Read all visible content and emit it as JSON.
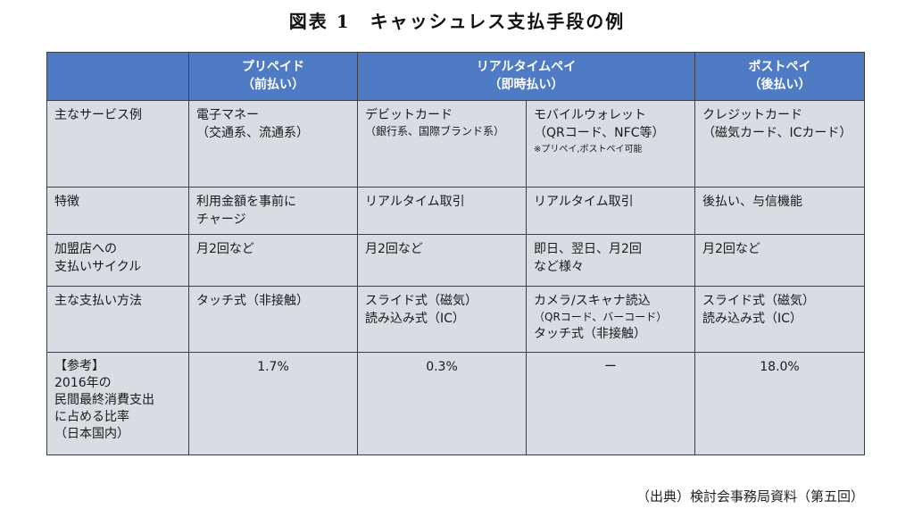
{
  "title": "図表 1　キャッシュレス支払手段の例",
  "header": {
    "blank": "",
    "prepaid": [
      "プリペイド",
      "（前払い）"
    ],
    "realtime": [
      "リアルタイムペイ",
      "（即時払い）"
    ],
    "postpay": [
      "ポストペイ",
      "（後払い）"
    ]
  },
  "rows": [
    {
      "label": [
        "主なサービス例"
      ],
      "prepaid": [
        "電子マネー",
        "（交通系、流通系）"
      ],
      "debit": [
        "デビットカード",
        "（銀行系、国際ブランド系）"
      ],
      "mobile": [
        "モバイルウォレット",
        "（QRコード、NFC等）"
      ],
      "mobile_note": "※プリペイ,ポストペイ可能",
      "postpay": [
        "クレジットカード",
        "（磁気カード、ICカード）"
      ]
    },
    {
      "label": [
        "特徴"
      ],
      "prepaid": [
        "利用金額を事前に",
        "チャージ"
      ],
      "debit": [
        "リアルタイム取引"
      ],
      "mobile": [
        "リアルタイム取引"
      ],
      "postpay": [
        "後払い、与信機能"
      ]
    },
    {
      "label": [
        "加盟店への",
        "支払いサイクル"
      ],
      "prepaid": [
        "月2回など"
      ],
      "debit": [
        "月2回など"
      ],
      "mobile": [
        "即日、翌日、月2回",
        "など様々"
      ],
      "postpay": [
        "月2回など"
      ]
    },
    {
      "label": [
        "主な支払い方法"
      ],
      "prepaid": [
        "タッチ式（非接触）"
      ],
      "debit": [
        "スライド式（磁気）",
        "読み込み式（IC）"
      ],
      "mobile": [
        "カメラ/スキャナ読込",
        "（QRコード、バーコード）",
        "タッチ式（非接触）"
      ],
      "postpay": [
        "スライド式（磁気）",
        "読み込み式（IC）"
      ]
    },
    {
      "label": [
        "【参考】",
        "2016年の",
        "民間最終消費支出",
        "に占める比率",
        "（日本国内）"
      ],
      "prepaid": [
        "1.7%"
      ],
      "debit": [
        "0.3%"
      ],
      "mobile": [
        "ー"
      ],
      "postpay": [
        "18.0%"
      ]
    }
  ],
  "source": "（出典）検討会事務局資料（第五回）",
  "colors": {
    "header_bg": "#4f7bc4",
    "cell_bg": "#d9dce3",
    "border": "#3b3f4a"
  }
}
